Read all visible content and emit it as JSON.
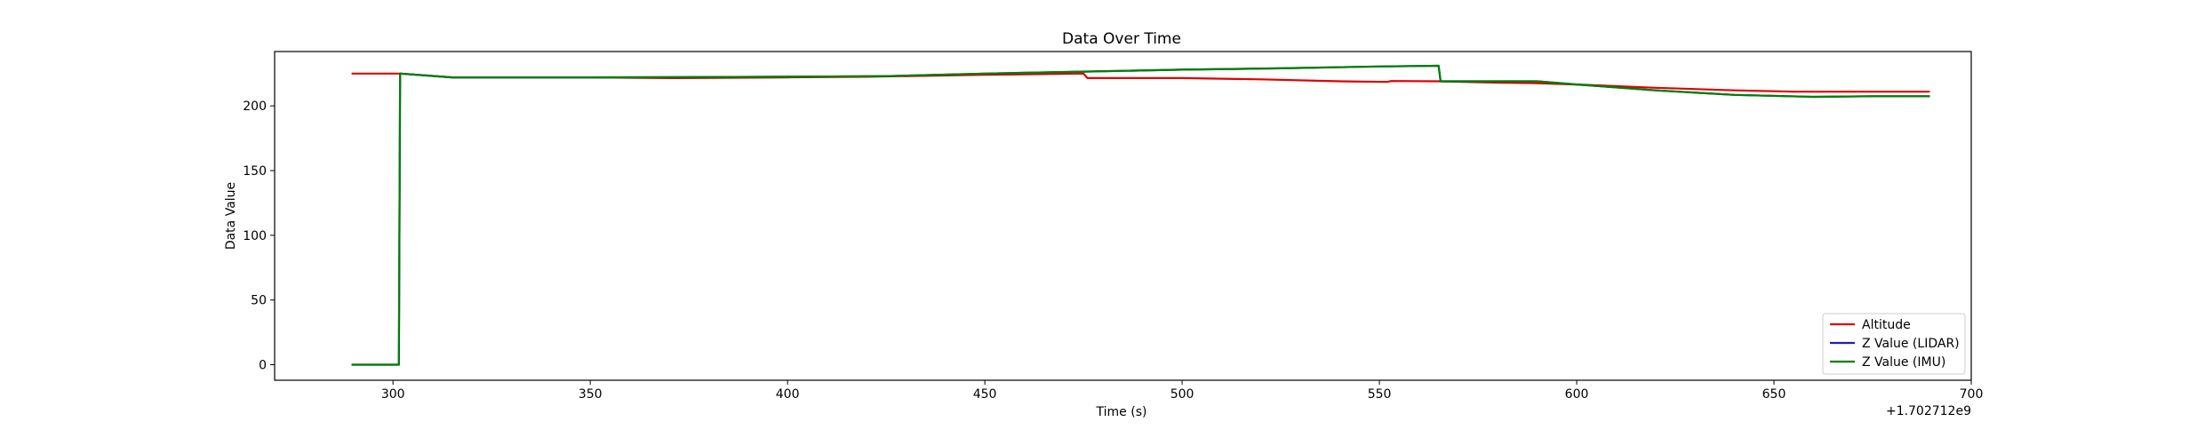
{
  "chart_data": {
    "type": "line",
    "title": "Data Over Time",
    "xlabel": "Time (s)",
    "ylabel": "Data Value",
    "x_offset_label": "+1.702712e9",
    "xlim": [
      270,
      700
    ],
    "ylim": [
      -12,
      242
    ],
    "xticks": [
      300,
      350,
      400,
      450,
      500,
      550,
      600,
      650,
      700
    ],
    "yticks": [
      0,
      50,
      100,
      150,
      200
    ],
    "grid": false,
    "legend_position": "lower-right",
    "series": [
      {
        "name": "Altitude",
        "color": "#e00000",
        "points": [
          [
            289.5,
            225
          ],
          [
            301.5,
            225
          ],
          [
            302,
            225
          ],
          [
            315,
            222
          ],
          [
            350,
            222
          ],
          [
            370,
            221.5
          ],
          [
            400,
            222
          ],
          [
            420,
            222.5
          ],
          [
            450,
            224
          ],
          [
            475,
            225
          ],
          [
            476,
            221.5
          ],
          [
            500,
            221.5
          ],
          [
            520,
            220.5
          ],
          [
            540,
            219
          ],
          [
            552,
            218.5
          ],
          [
            553,
            219.2
          ],
          [
            565,
            219
          ],
          [
            580,
            218
          ],
          [
            590,
            217.5
          ],
          [
            600,
            216.5
          ],
          [
            620,
            214
          ],
          [
            640,
            212
          ],
          [
            655,
            211
          ],
          [
            670,
            211
          ],
          [
            689.5,
            211
          ]
        ]
      },
      {
        "name": "Z Value (LIDAR)",
        "color": "#1f1fb4",
        "points": [
          [
            289.5,
            0
          ],
          [
            300.5,
            0
          ],
          [
            301.5,
            0
          ],
          [
            301.8,
            225
          ],
          [
            315,
            222
          ],
          [
            350,
            222
          ],
          [
            400,
            222.5
          ],
          [
            425,
            223
          ],
          [
            450,
            225
          ],
          [
            475,
            226.5
          ],
          [
            500,
            228
          ],
          [
            525,
            229
          ],
          [
            550,
            230.5
          ],
          [
            565,
            231
          ],
          [
            565.5,
            219
          ],
          [
            590,
            219
          ],
          [
            600,
            216.5
          ],
          [
            620,
            212
          ],
          [
            640,
            208.5
          ],
          [
            660,
            207
          ],
          [
            675,
            207.5
          ],
          [
            689.5,
            207.5
          ]
        ]
      },
      {
        "name": "Z Value (IMU)",
        "color": "#008000",
        "points": [
          [
            289.5,
            0
          ],
          [
            300.5,
            0
          ],
          [
            301.5,
            0
          ],
          [
            301.8,
            225
          ],
          [
            315,
            222
          ],
          [
            350,
            222
          ],
          [
            400,
            222.5
          ],
          [
            425,
            223
          ],
          [
            450,
            225
          ],
          [
            475,
            226.5
          ],
          [
            500,
            228
          ],
          [
            525,
            229
          ],
          [
            550,
            230.5
          ],
          [
            565,
            231
          ],
          [
            565.5,
            219
          ],
          [
            590,
            219
          ],
          [
            600,
            216.5
          ],
          [
            620,
            212
          ],
          [
            640,
            208.5
          ],
          [
            660,
            207
          ],
          [
            675,
            207.5
          ],
          [
            689.5,
            207.5
          ]
        ]
      }
    ]
  }
}
